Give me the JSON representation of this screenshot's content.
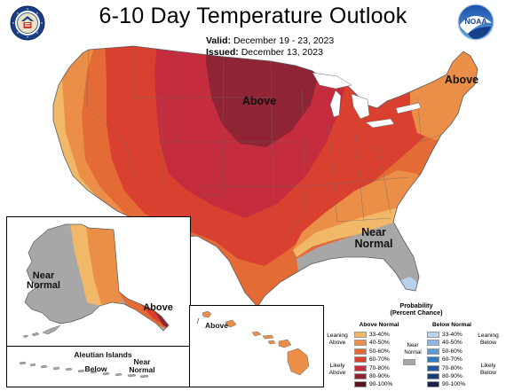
{
  "title": "6-10 Day Temperature Outlook",
  "valid": {
    "label": "Valid:",
    "value": "December 19 - 23, 2023"
  },
  "issued": {
    "label": "Issued:",
    "value": "December 13, 2023"
  },
  "logos": {
    "left": "us-department-of-commerce-seal",
    "right_text": "NOAA"
  },
  "map_labels": {
    "above_central": "Above",
    "above_northeast": "Above",
    "near_normal_southeast": "Near\nNormal",
    "near_normal_alaska": "Near\nNormal",
    "above_alaska_panhandle": "Above",
    "above_hawaii": "Above",
    "aleutian_title": "Aleutian Islands",
    "aleutian_near_normal": "Near\nNormal",
    "aleutian_below": "Below"
  },
  "legend": {
    "title": "Probability\n(Percent Chance)",
    "above_header": "Above Normal",
    "below_header": "Below Normal",
    "near_label": "Near\nNormal",
    "leaning_above": "Leaning\nAbove",
    "likely_above": "Likely\nAbove",
    "leaning_below": "Leaning\nBelow",
    "likely_below": "Likely\nBelow",
    "above_bins": [
      {
        "range": "33-40%",
        "color": "#f2b86a"
      },
      {
        "range": "40-50%",
        "color": "#eb8e47"
      },
      {
        "range": "50-60%",
        "color": "#e46a36"
      },
      {
        "range": "60-70%",
        "color": "#d94030"
      },
      {
        "range": "70-80%",
        "color": "#c52d3f"
      },
      {
        "range": "80-90%",
        "color": "#8f2434"
      },
      {
        "range": "90-100%",
        "color": "#5a1420"
      }
    ],
    "below_bins": [
      {
        "range": "33-40%",
        "color": "#b8d2ec"
      },
      {
        "range": "40-50%",
        "color": "#8cb8e2"
      },
      {
        "range": "50-60%",
        "color": "#5d9bd4"
      },
      {
        "range": "60-70%",
        "color": "#2f7cc0"
      },
      {
        "range": "70-80%",
        "color": "#1f5aa0"
      },
      {
        "range": "80-90%",
        "color": "#1b3a78"
      },
      {
        "range": "90-100%",
        "color": "#1a1f4e"
      }
    ],
    "near_color": "#a7a7a7"
  }
}
